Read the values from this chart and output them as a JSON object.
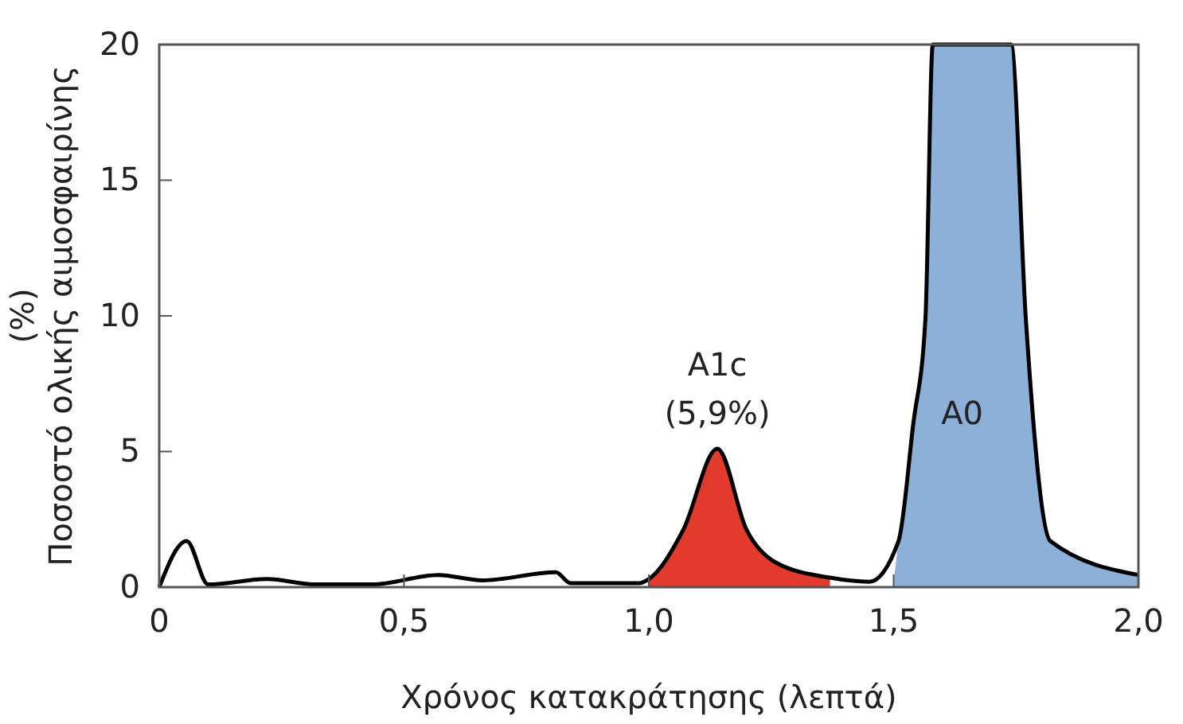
{
  "chart_data": {
    "type": "line",
    "xlabel": "Χρόνος κατακράτησης (λεπτά)",
    "ylabel": "Ποσοστό ολικής αιμοσφαιρίνης (%)",
    "xlim": [
      0,
      2
    ],
    "xticks": [
      0,
      {
        "value": 0.5,
        "label": "0,5"
      },
      {
        "value": 1,
        "label": "1,0"
      },
      {
        "value": 1.5,
        "label": "1,5"
      },
      {
        "value": 2,
        "label": "2,0"
      }
    ],
    "ylim": [
      0,
      20
    ],
    "yticks": [
      0,
      5,
      10,
      15,
      20
    ],
    "grid": false,
    "series": [
      {
        "type": "area",
        "color": "#e23a2c",
        "x": [
          1.0,
          1.07,
          1.14,
          1.2,
          1.26,
          1.37
        ],
        "values": [
          0.3,
          2.1,
          5.1,
          2.1,
          0.9,
          0.35
        ]
      },
      {
        "type": "area",
        "color": "#8cb0d8",
        "x": [
          1.5,
          1.51,
          1.54,
          1.565,
          1.58,
          1.74,
          1.77,
          1.82,
          2.0
        ],
        "values": [
          0.2,
          1.7,
          6.0,
          9.9,
          20,
          20,
          9.9,
          1.7,
          0.45
        ]
      },
      {
        "color": "#000000",
        "x": [
          0,
          0.056,
          0.1,
          0.22,
          0.32,
          0.435,
          0.57,
          0.66,
          0.81,
          0.84,
          0.98,
          1.0,
          1.07,
          1.14,
          1.2,
          1.26,
          1.37,
          1.45,
          1.51,
          1.54,
          1.565,
          1.58,
          1.74,
          1.77,
          1.82,
          2.0
        ],
        "values": [
          0,
          1.7,
          0.1,
          0.3,
          0.1,
          0.1,
          0.45,
          0.25,
          0.55,
          0.15,
          0.15,
          0.3,
          2.1,
          5.1,
          2.1,
          0.9,
          0.35,
          0.2,
          1.7,
          6.0,
          9.9,
          20,
          20,
          9.9,
          1.7,
          0.45
        ]
      }
    ],
    "annotations": [
      "A1c",
      "(5,9%)",
      "A0"
    ]
  }
}
